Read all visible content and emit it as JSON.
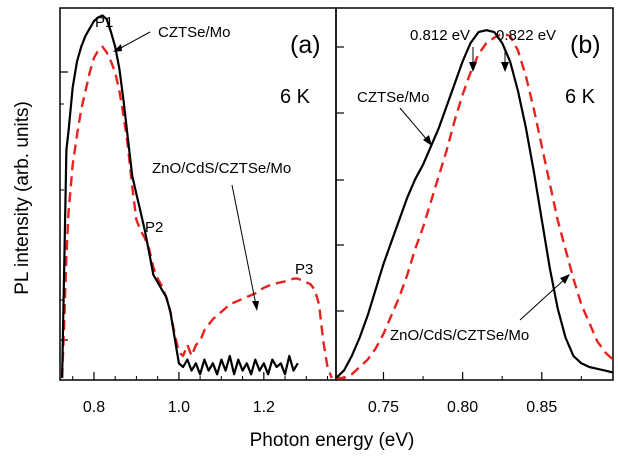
{
  "figure": {
    "ylabel": "PL intensity (arb. units)",
    "xlabel": "Photon energy (eV)"
  },
  "chart_data": [
    {
      "type": "line",
      "panel_label": "(a)",
      "temperature_label": "6 K",
      "xlim": [
        0.72,
        1.37
      ],
      "ylim": [
        0,
        1
      ],
      "y_scale": "log (no tick labels)",
      "x_ticks": [
        "0.8",
        "1.0",
        "1.2"
      ],
      "x_tick_values": [
        0.8,
        1.0,
        1.2
      ],
      "peak_labels": [
        {
          "text": "P1",
          "x": 0.81,
          "y": 0.985
        },
        {
          "text": "P2",
          "x": 0.925,
          "y": 0.43
        },
        {
          "text": "P3",
          "x": 1.31,
          "y": 0.27
        }
      ],
      "annotations": [
        {
          "text": "CZTSe/Mo",
          "x": 0.87,
          "y": 0.985
        },
        {
          "text": "ZnO/CdS/CZTSe/Mo",
          "x": 1.03,
          "y": 0.6
        }
      ],
      "series": [
        {
          "name": "CZTSe/Mo",
          "color": "#000000",
          "dash": "solid",
          "x": [
            0.725,
            0.73,
            0.735,
            0.74,
            0.75,
            0.76,
            0.77,
            0.78,
            0.79,
            0.8,
            0.81,
            0.82,
            0.83,
            0.84,
            0.85,
            0.86,
            0.87,
            0.88,
            0.89,
            0.9,
            0.91,
            0.92,
            0.93,
            0.94,
            0.95,
            0.96,
            0.97,
            0.98,
            0.99,
            1.0,
            1.01,
            1.02,
            1.03,
            1.04,
            1.05,
            1.06,
            1.07,
            1.08,
            1.09,
            1.1,
            1.11,
            1.12,
            1.13,
            1.14,
            1.15,
            1.16,
            1.17,
            1.18,
            1.19,
            1.2,
            1.21,
            1.22,
            1.23,
            1.24,
            1.25,
            1.26,
            1.27,
            1.28
          ],
          "y": [
            0.0,
            0.3,
            0.62,
            0.67,
            0.79,
            0.86,
            0.9,
            0.93,
            0.95,
            0.97,
            0.98,
            0.985,
            0.975,
            0.94,
            0.9,
            0.84,
            0.75,
            0.65,
            0.55,
            0.5,
            0.45,
            0.4,
            0.34,
            0.28,
            0.26,
            0.24,
            0.22,
            0.18,
            0.11,
            0.04,
            0.03,
            0.05,
            0.02,
            0.04,
            0.01,
            0.05,
            0.02,
            0.04,
            0.01,
            0.05,
            0.02,
            0.06,
            0.01,
            0.05,
            0.02,
            0.04,
            0.01,
            0.05,
            0.02,
            0.04,
            0.01,
            0.05,
            0.03,
            0.04,
            0.01,
            0.06,
            0.02,
            0.04
          ]
        },
        {
          "name": "ZnO/CdS/CZTSe/Mo",
          "color": "#e8231f",
          "dash": "dashed",
          "x": [
            0.725,
            0.73,
            0.735,
            0.74,
            0.75,
            0.76,
            0.77,
            0.78,
            0.79,
            0.8,
            0.81,
            0.82,
            0.83,
            0.84,
            0.85,
            0.86,
            0.87,
            0.88,
            0.89,
            0.9,
            0.91,
            0.92,
            0.93,
            0.94,
            0.95,
            0.96,
            0.97,
            0.98,
            0.99,
            1.0,
            1.01,
            1.02,
            1.03,
            1.04,
            1.05,
            1.06,
            1.08,
            1.1,
            1.12,
            1.14,
            1.16,
            1.18,
            1.2,
            1.22,
            1.24,
            1.26,
            1.27,
            1.28,
            1.29,
            1.3,
            1.31,
            1.32,
            1.33,
            1.34,
            1.35,
            1.36
          ],
          "y": [
            0.0,
            0.15,
            0.33,
            0.45,
            0.58,
            0.66,
            0.73,
            0.78,
            0.83,
            0.87,
            0.89,
            0.9,
            0.885,
            0.86,
            0.83,
            0.78,
            0.71,
            0.63,
            0.52,
            0.43,
            0.4,
            0.38,
            0.35,
            0.3,
            0.27,
            0.25,
            0.22,
            0.18,
            0.12,
            0.07,
            0.06,
            0.09,
            0.06,
            0.09,
            0.1,
            0.13,
            0.16,
            0.18,
            0.2,
            0.21,
            0.22,
            0.23,
            0.245,
            0.255,
            0.26,
            0.265,
            0.27,
            0.27,
            0.265,
            0.26,
            0.255,
            0.24,
            0.2,
            0.1,
            0.03,
            0.0
          ]
        }
      ]
    },
    {
      "type": "line",
      "panel_label": "(b)",
      "temperature_label": "6 K",
      "xlim": [
        0.72,
        0.895
      ],
      "ylim": [
        0,
        1
      ],
      "x_ticks": [
        "0.75",
        "0.80",
        "0.85"
      ],
      "x_tick_values": [
        0.75,
        0.8,
        0.85
      ],
      "peak_labels": [
        {
          "text": "0.812 eV",
          "x": 0.812,
          "y": 0.93
        },
        {
          "text": "0.822 eV",
          "x": 0.822,
          "y": 0.93
        }
      ],
      "annotations": [
        {
          "text": "CZTSe/Mo",
          "x": 0.757,
          "y": 0.8
        },
        {
          "text": "ZnO/CdS/CZTSe/Mo",
          "x": 0.79,
          "y": 0.1
        }
      ],
      "series": [
        {
          "name": "CZTSe/Mo",
          "color": "#000000",
          "dash": "solid",
          "x": [
            0.72,
            0.725,
            0.73,
            0.735,
            0.74,
            0.745,
            0.75,
            0.755,
            0.76,
            0.765,
            0.77,
            0.775,
            0.78,
            0.785,
            0.79,
            0.795,
            0.8,
            0.805,
            0.81,
            0.815,
            0.82,
            0.825,
            0.83,
            0.835,
            0.84,
            0.845,
            0.85,
            0.855,
            0.86,
            0.865,
            0.87,
            0.875,
            0.88,
            0.885,
            0.89,
            0.895
          ],
          "y": [
            0.0,
            0.02,
            0.06,
            0.11,
            0.17,
            0.24,
            0.31,
            0.37,
            0.43,
            0.49,
            0.54,
            0.58,
            0.63,
            0.68,
            0.74,
            0.8,
            0.86,
            0.91,
            0.94,
            0.945,
            0.94,
            0.91,
            0.86,
            0.78,
            0.68,
            0.56,
            0.43,
            0.3,
            0.19,
            0.11,
            0.06,
            0.04,
            0.03,
            0.025,
            0.02,
            0.015
          ]
        },
        {
          "name": "ZnO/CdS/CZTSe/Mo",
          "color": "#e8231f",
          "dash": "dashed",
          "x": [
            0.72,
            0.725,
            0.73,
            0.735,
            0.74,
            0.745,
            0.75,
            0.755,
            0.76,
            0.765,
            0.77,
            0.775,
            0.78,
            0.785,
            0.79,
            0.795,
            0.8,
            0.805,
            0.81,
            0.815,
            0.82,
            0.825,
            0.83,
            0.835,
            0.84,
            0.845,
            0.85,
            0.855,
            0.86,
            0.865,
            0.87,
            0.875,
            0.88,
            0.885,
            0.89,
            0.895
          ],
          "y": [
            0.0,
            0.0,
            0.01,
            0.03,
            0.05,
            0.08,
            0.12,
            0.17,
            0.22,
            0.28,
            0.35,
            0.41,
            0.48,
            0.55,
            0.62,
            0.7,
            0.77,
            0.83,
            0.88,
            0.91,
            0.925,
            0.935,
            0.93,
            0.89,
            0.82,
            0.73,
            0.63,
            0.53,
            0.43,
            0.35,
            0.27,
            0.2,
            0.15,
            0.1,
            0.07,
            0.05
          ]
        }
      ]
    }
  ]
}
